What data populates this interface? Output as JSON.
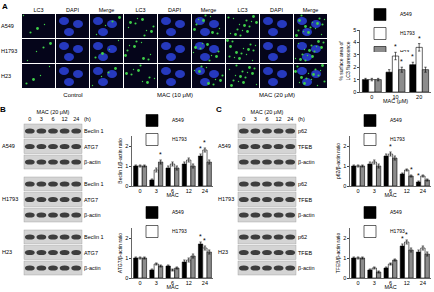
{
  "panels": {
    "A": {
      "label": "A",
      "row_labels": [
        "A549",
        "H1793",
        "H23"
      ],
      "column_headers": [
        "LC3",
        "DAPI",
        "Merge",
        "LC3",
        "DAPI",
        "Merge",
        "LC3",
        "DAPI",
        "Merge"
      ],
      "group_labels": [
        "Control",
        "MAC (10 μM)",
        "MAC (20 μM)"
      ]
    },
    "B": {
      "label": "B",
      "treatment": "MAC (20 μM)",
      "times": [
        "0",
        "3",
        "6",
        "12",
        "24"
      ],
      "time_unit": "(h)",
      "blots": [
        {
          "cell_line": "A549",
          "bands": [
            "Beclin 1",
            "ATG7",
            "β-actin"
          ]
        },
        {
          "cell_line": "H1793",
          "bands": [
            "Beclin 1",
            "ATG7",
            "β-actin"
          ]
        },
        {
          "cell_line": "H23",
          "bands": [
            "Beclin 1",
            "ATG7",
            "β-actin"
          ]
        }
      ]
    },
    "C": {
      "label": "C",
      "treatment": "MAC (20 μM)",
      "times": [
        "0",
        "3",
        "6",
        "12",
        "24"
      ],
      "time_unit": "(h)",
      "blots": [
        {
          "cell_line": "A549",
          "bands": [
            "p62",
            "TFEB",
            "β-actin"
          ]
        },
        {
          "cell_line": "H1793",
          "bands": [
            "p62",
            "TFEB",
            "β-actin"
          ]
        },
        {
          "cell_line": "H23",
          "bands": [
            "p62",
            "TFEB",
            "β-actin"
          ]
        }
      ]
    }
  },
  "chart_data": [
    {
      "type": "bar",
      "x_label": "MAC (μM)",
      "y_label": [
        "% surface area of",
        "LC3 fluorescence"
      ],
      "categories": [
        "0",
        "10",
        "20"
      ],
      "ylim": [
        0,
        5
      ],
      "yticks": [
        0,
        1,
        2,
        3,
        4,
        5
      ],
      "legend": "top",
      "series": [
        {
          "name": "A549",
          "color": "#000000",
          "values": [
            1.0,
            1.6,
            2.2
          ],
          "errors": [
            0.1,
            0.2,
            0.2
          ]
        },
        {
          "name": "H1793",
          "color": "#ffffff",
          "values": [
            1.0,
            2.9,
            3.6
          ],
          "errors": [
            0.1,
            0.3,
            0.3
          ]
        },
        {
          "name": "H23",
          "color": "#8c8c8c",
          "values": [
            1.0,
            1.8,
            1.8
          ],
          "errors": [
            0.1,
            0.2,
            0.2
          ]
        }
      ],
      "annotations": [
        {
          "text": "*",
          "series": "H1793",
          "category": "10"
        },
        {
          "text": "*",
          "series": "H1793",
          "category": "20"
        },
        {
          "text": "*",
          "series": "A549",
          "category": "20"
        },
        {
          "text": "*",
          "series": "H23",
          "category": "10"
        }
      ]
    },
    {
      "type": "bar",
      "x_label": "MAC",
      "y_label": "Beclin 1/β-actin ratio",
      "categories": [
        "0",
        "3",
        "6",
        "12",
        "24"
      ],
      "ylim": [
        0,
        2.5
      ],
      "yticks": [
        0,
        1,
        2
      ],
      "legend": "top",
      "series": [
        {
          "name": "A549",
          "color": "#000000",
          "values": [
            1.0,
            0.3,
            0.9,
            1.1,
            1.5
          ],
          "errors": [
            0.05,
            0.05,
            0.1,
            0.1,
            0.1
          ]
        },
        {
          "name": "H1793",
          "color": "#ffffff",
          "values": [
            1.0,
            0.8,
            1.1,
            1.3,
            1.8
          ],
          "errors": [
            0.05,
            0.1,
            0.1,
            0.1,
            0.1
          ]
        },
        {
          "name": "H23",
          "color": "#8c8c8c",
          "values": [
            1.0,
            1.2,
            0.9,
            1.0,
            1.2
          ],
          "errors": [
            0.05,
            0.1,
            0.1,
            0.1,
            0.1
          ]
        }
      ],
      "annotations": [
        {
          "text": "*",
          "series": "H1793",
          "category": "24"
        },
        {
          "text": "*",
          "series": "A549",
          "category": "24"
        },
        {
          "text": "*",
          "series": "H23",
          "category": "3"
        }
      ]
    },
    {
      "type": "bar",
      "x_label": "MAC",
      "y_label": "ATG7/β-actin ratio",
      "categories": [
        "0",
        "3",
        "6",
        "12",
        "24"
      ],
      "ylim": [
        0,
        2.5
      ],
      "yticks": [
        0,
        1,
        2
      ],
      "legend": "top",
      "series": [
        {
          "name": "A549",
          "color": "#000000",
          "values": [
            1.0,
            0.4,
            0.6,
            0.8,
            1.7
          ],
          "errors": [
            0.05,
            0.05,
            0.05,
            0.1,
            0.1
          ]
        },
        {
          "name": "H1793",
          "color": "#ffffff",
          "values": [
            1.0,
            0.7,
            0.4,
            0.9,
            1.5
          ],
          "errors": [
            0.05,
            0.05,
            0.05,
            0.1,
            0.1
          ]
        },
        {
          "name": "H23",
          "color": "#8c8c8c",
          "values": [
            1.0,
            0.6,
            0.5,
            1.1,
            1.3
          ],
          "errors": [
            0.05,
            0.05,
            0.05,
            0.1,
            0.1
          ]
        }
      ],
      "annotations": [
        {
          "text": "*",
          "series": "A549",
          "category": "24"
        },
        {
          "text": "*",
          "series": "H1793",
          "category": "24"
        }
      ]
    },
    {
      "type": "bar",
      "x_label": "MAC",
      "y_label": "p62/β-actin ratio",
      "categories": [
        "0",
        "3",
        "6",
        "12",
        "24"
      ],
      "ylim": [
        0,
        2.5
      ],
      "yticks": [
        0,
        1,
        2
      ],
      "legend": "top",
      "series": [
        {
          "name": "A549",
          "color": "#000000",
          "values": [
            1.0,
            1.1,
            1.5,
            0.6,
            0.2
          ],
          "errors": [
            0.05,
            0.1,
            0.1,
            0.05,
            0.05
          ]
        },
        {
          "name": "H1793",
          "color": "#ffffff",
          "values": [
            1.0,
            1.2,
            1.6,
            0.8,
            0.5
          ],
          "errors": [
            0.05,
            0.1,
            0.1,
            0.05,
            0.05
          ]
        },
        {
          "name": "H23",
          "color": "#8c8c8c",
          "values": [
            1.0,
            1.0,
            1.4,
            0.5,
            0.3
          ],
          "errors": [
            0.05,
            0.1,
            0.1,
            0.05,
            0.05
          ]
        }
      ],
      "annotations": [
        {
          "text": "*",
          "series": "H1793",
          "category": "6"
        },
        {
          "text": "*",
          "series": "A549",
          "category": "24"
        },
        {
          "text": "*",
          "series": "H23",
          "category": "12"
        }
      ]
    },
    {
      "type": "bar",
      "x_label": "MAC",
      "y_label": "TFEB/β-actin ratio",
      "categories": [
        "0",
        "3",
        "6",
        "12",
        "24"
      ],
      "ylim": [
        0,
        2.5
      ],
      "yticks": [
        0,
        1,
        2
      ],
      "legend": "top",
      "series": [
        {
          "name": "A549",
          "color": "#000000",
          "values": [
            1.0,
            0.4,
            0.5,
            1.6,
            1.3
          ],
          "errors": [
            0.05,
            0.05,
            0.05,
            0.1,
            0.1
          ]
        },
        {
          "name": "H1793",
          "color": "#ffffff",
          "values": [
            1.0,
            0.5,
            0.7,
            1.8,
            1.5
          ],
          "errors": [
            0.05,
            0.05,
            0.05,
            0.1,
            0.1
          ]
        },
        {
          "name": "H23",
          "color": "#8c8c8c",
          "values": [
            1.0,
            0.3,
            0.9,
            1.4,
            1.2
          ],
          "errors": [
            0.05,
            0.05,
            0.05,
            0.1,
            0.1
          ]
        }
      ],
      "annotations": [
        {
          "text": "*",
          "series": "H1793",
          "category": "12"
        },
        {
          "text": "*",
          "series": "A549",
          "category": "12"
        }
      ]
    }
  ]
}
